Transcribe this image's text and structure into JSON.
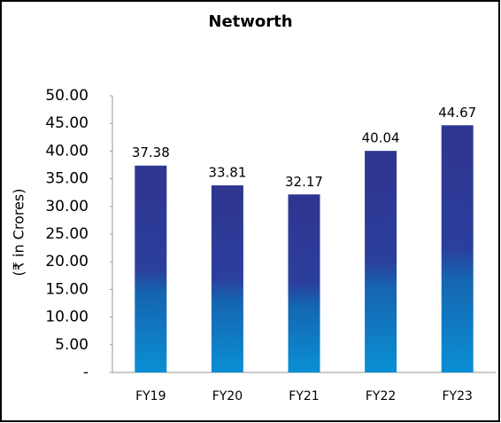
{
  "chart_data": {
    "type": "bar",
    "title": "Networth",
    "y_label": "(₹ in Crores)",
    "categories": [
      "FY19",
      "FY20",
      "FY21",
      "FY22",
      "FY23"
    ],
    "values": [
      37.38,
      33.81,
      32.17,
      40.04,
      44.67
    ],
    "ylim": [
      0,
      50
    ],
    "yticks": [
      {
        "value": 0,
        "label": "-"
      },
      {
        "value": 5,
        "label": "5.00"
      },
      {
        "value": 10,
        "label": "10.00"
      },
      {
        "value": 15,
        "label": "15.00"
      },
      {
        "value": 20,
        "label": "20.00"
      },
      {
        "value": 25,
        "label": "25.00"
      },
      {
        "value": 30,
        "label": "30.00"
      },
      {
        "value": 35,
        "label": "35.00"
      },
      {
        "value": 40,
        "label": "40.00"
      },
      {
        "value": 45,
        "label": "45.00"
      },
      {
        "value": 50,
        "label": "50.00"
      }
    ],
    "grid": false
  }
}
